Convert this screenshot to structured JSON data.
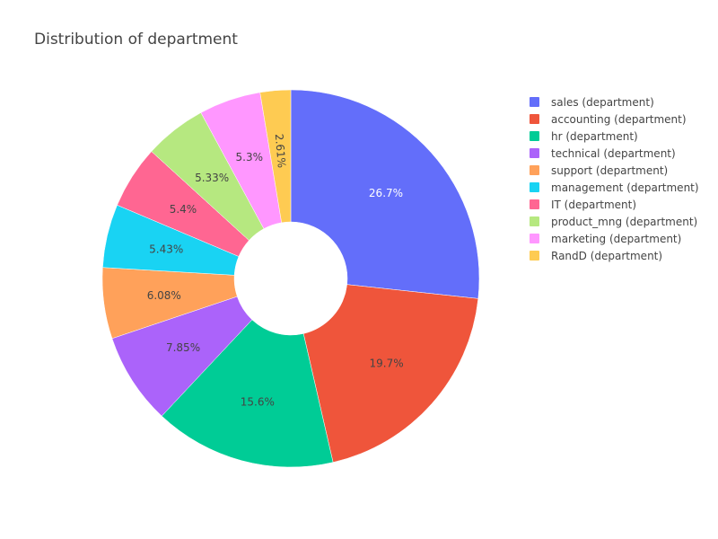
{
  "chart_data": {
    "type": "pie",
    "title": "Distribution of department",
    "hole": true,
    "categories": [
      "sales (department)",
      "accounting (department)",
      "hr (department)",
      "technical (department)",
      "support (department)",
      "management (department)",
      "IT (department)",
      "product_mng (department)",
      "marketing (department)",
      "RandD (department)"
    ],
    "values": [
      26.7,
      19.7,
      15.6,
      7.85,
      6.08,
      5.43,
      5.4,
      5.33,
      5.3,
      2.61
    ],
    "labels": [
      "26.7%",
      "19.7%",
      "15.6%",
      "7.85%",
      "6.08%",
      "5.43%",
      "5.4%",
      "5.33%",
      "5.3%",
      "2.61%"
    ],
    "colors": [
      "#636efa",
      "#EF553B",
      "#00cc96",
      "#ab63fa",
      "#FFA15A",
      "#19d3f3",
      "#FF6692",
      "#B6E880",
      "#FF97FF",
      "#FECB52"
    ],
    "label_colors": [
      "#ffffff",
      "#444444",
      "#444444",
      "#444444",
      "#444444",
      "#444444",
      "#444444",
      "#444444",
      "#444444",
      "#444444"
    ],
    "direction": "clockwise",
    "legend_position": "right"
  }
}
